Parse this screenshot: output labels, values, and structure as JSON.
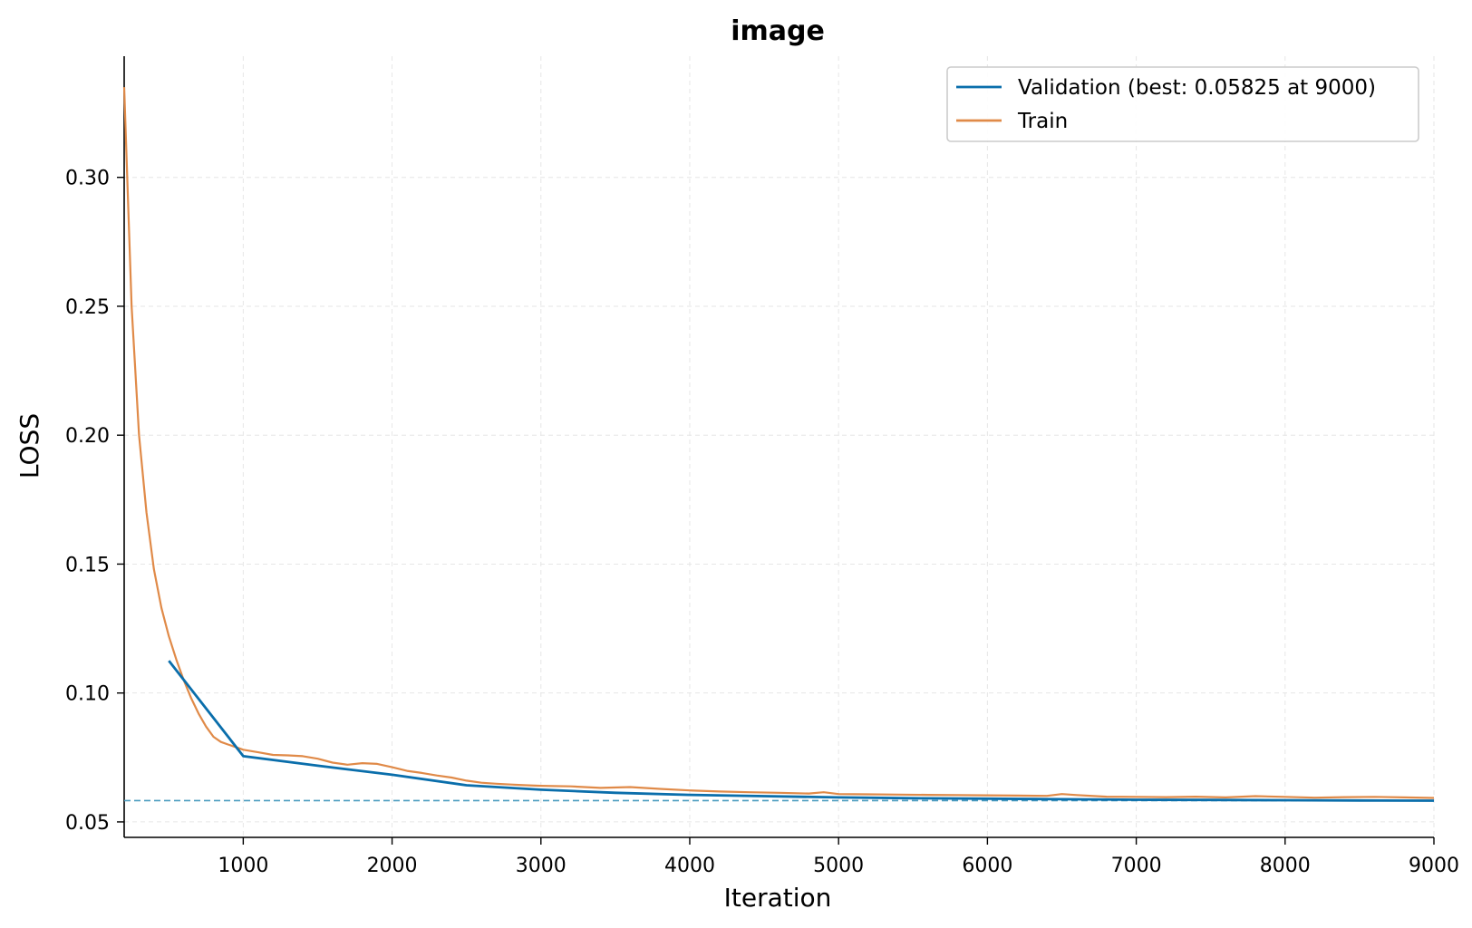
{
  "chart_data": {
    "type": "line",
    "title": "image",
    "xlabel": "Iteration",
    "ylabel": "LOSS",
    "xlim": [
      200,
      9000
    ],
    "ylim": [
      0.044,
      0.347
    ],
    "xticks": [
      1000,
      2000,
      3000,
      4000,
      5000,
      6000,
      7000,
      8000,
      9000
    ],
    "xtick_labels": [
      "1000",
      "2000",
      "3000",
      "4000",
      "5000",
      "6000",
      "7000",
      "8000",
      "9000"
    ],
    "yticks": [
      0.05,
      0.1,
      0.15,
      0.2,
      0.25,
      0.3
    ],
    "ytick_labels": [
      "0.05",
      "0.10",
      "0.15",
      "0.20",
      "0.25",
      "0.30"
    ],
    "grid": true,
    "legend_position": "top-right",
    "best_line": {
      "y": 0.05825,
      "style": "dashed",
      "color": "#4a9bbf"
    },
    "series": [
      {
        "name": "Validation (best: 0.05825 at 9000)",
        "color": "#0a6eab",
        "x": [
          500,
          1000,
          1500,
          2000,
          2500,
          3000,
          3500,
          4000,
          4500,
          5000,
          5500,
          6000,
          6500,
          7000,
          7500,
          8000,
          8500,
          9000
        ],
        "y": [
          0.1125,
          0.0755,
          0.0718,
          0.0683,
          0.0642,
          0.0625,
          0.0613,
          0.0605,
          0.06,
          0.0595,
          0.0592,
          0.059,
          0.0588,
          0.0586,
          0.0585,
          0.0584,
          0.0583,
          0.05825
        ]
      },
      {
        "name": "Train",
        "color": "#e08a48",
        "x": [
          200,
          250,
          300,
          350,
          400,
          450,
          500,
          550,
          600,
          650,
          700,
          750,
          800,
          850,
          900,
          950,
          1000,
          1100,
          1200,
          1300,
          1400,
          1500,
          1600,
          1700,
          1800,
          1900,
          2000,
          2100,
          2200,
          2300,
          2400,
          2500,
          2600,
          2700,
          2800,
          2900,
          3000,
          3200,
          3400,
          3600,
          3800,
          4000,
          4200,
          4400,
          4600,
          4800,
          4900,
          5000,
          5200,
          5400,
          5600,
          5800,
          6000,
          6200,
          6400,
          6500,
          6600,
          6800,
          7000,
          7200,
          7400,
          7600,
          7800,
          8000,
          8200,
          8400,
          8600,
          8800,
          9000
        ],
        "y": [
          0.335,
          0.25,
          0.2,
          0.17,
          0.148,
          0.133,
          0.122,
          0.113,
          0.105,
          0.098,
          0.092,
          0.087,
          0.083,
          0.081,
          0.08,
          0.079,
          0.078,
          0.077,
          0.076,
          0.0758,
          0.0755,
          0.0745,
          0.073,
          0.0722,
          0.0728,
          0.0725,
          0.0712,
          0.0698,
          0.069,
          0.068,
          0.0672,
          0.066,
          0.0652,
          0.0648,
          0.0645,
          0.0642,
          0.064,
          0.0638,
          0.0632,
          0.0635,
          0.0628,
          0.0622,
          0.0618,
          0.0615,
          0.0613,
          0.061,
          0.0615,
          0.0608,
          0.0607,
          0.0606,
          0.0605,
          0.0604,
          0.0603,
          0.0602,
          0.0601,
          0.0608,
          0.0604,
          0.0598,
          0.0597,
          0.0596,
          0.0598,
          0.0595,
          0.06,
          0.0597,
          0.0594,
          0.0596,
          0.0597,
          0.0595,
          0.0593
        ]
      }
    ]
  }
}
